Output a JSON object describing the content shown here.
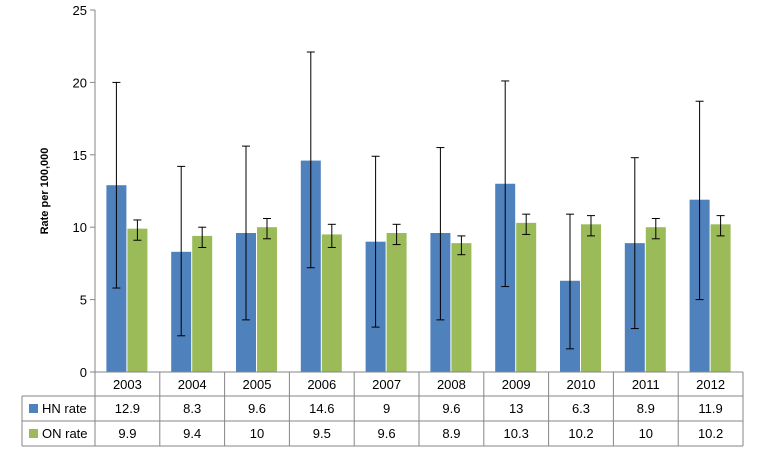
{
  "chart_data": {
    "type": "bar",
    "title": "",
    "xlabel": "",
    "ylabel": "Rate per 100,000",
    "ylim": [
      0,
      25
    ],
    "yticks": [
      0,
      5,
      10,
      15,
      20,
      25
    ],
    "grid": false,
    "legend": "data table below chart",
    "categories": [
      "2003",
      "2004",
      "2005",
      "2006",
      "2007",
      "2008",
      "2009",
      "2010",
      "2011",
      "2012"
    ],
    "series": [
      {
        "name": "HN rate",
        "color": "#4F81BD",
        "values": [
          12.9,
          8.3,
          9.6,
          14.6,
          9,
          9.6,
          13,
          6.3,
          8.9,
          11.9
        ],
        "value_labels": [
          "12.9",
          "8.3",
          "9.6",
          "14.6",
          "9",
          "9.6",
          "13",
          "6.3",
          "8.9",
          "11.9"
        ],
        "error_low": [
          5.8,
          2.5,
          3.6,
          7.2,
          3.1,
          3.6,
          5.9,
          1.6,
          3.0,
          5.0
        ],
        "error_high": [
          20.0,
          14.2,
          15.6,
          22.1,
          14.9,
          15.5,
          20.1,
          10.9,
          14.8,
          18.7
        ]
      },
      {
        "name": "ON rate",
        "color": "#9BBB59",
        "values": [
          9.9,
          9.4,
          10,
          9.5,
          9.6,
          8.9,
          10.3,
          10.2,
          10,
          10.2
        ],
        "value_labels": [
          "9.9",
          "9.4",
          "10",
          "9.5",
          "9.6",
          "8.9",
          "10.3",
          "10.2",
          "10",
          "10.2"
        ],
        "error_low": [
          9.1,
          8.6,
          9.2,
          8.6,
          8.8,
          8.1,
          9.5,
          9.4,
          9.2,
          9.4
        ],
        "error_high": [
          10.5,
          10.0,
          10.6,
          10.2,
          10.2,
          9.4,
          10.9,
          10.8,
          10.6,
          10.8
        ]
      }
    ]
  }
}
